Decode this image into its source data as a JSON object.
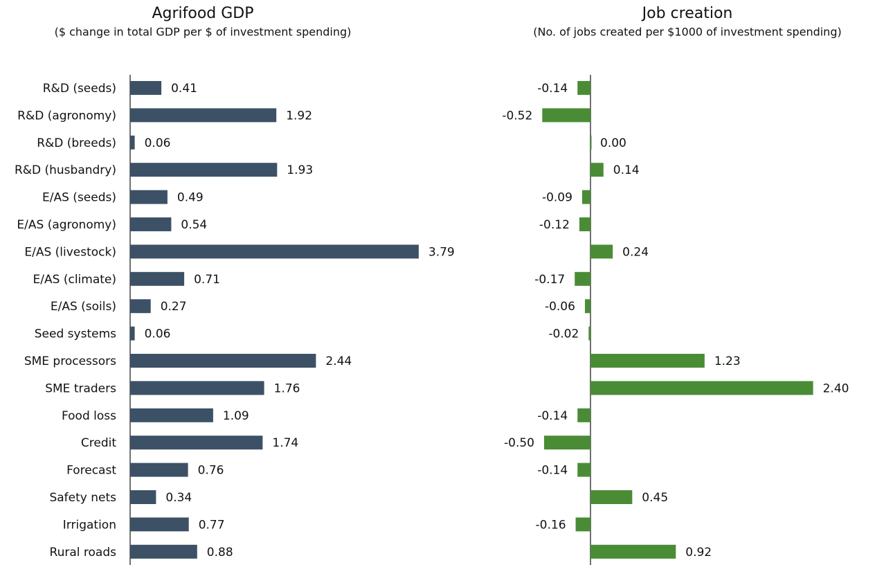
{
  "chart_data": [
    {
      "type": "bar",
      "orientation": "horizontal",
      "title": "Agrifood GDP",
      "subtitle": "($ change in total GDP per $ of investment spending)",
      "categories": [
        "R&D (seeds)",
        "R&D (agronomy)",
        "R&D (breeds)",
        "R&D (husbandry)",
        "E/AS (seeds)",
        "E/AS (agronomy)",
        "E/AS (livestock)",
        "E/AS (climate)",
        "E/AS (soils)",
        "Seed systems",
        "SME processors",
        "SME traders",
        "Food loss",
        "Credit",
        "Forecast",
        "Safety nets",
        "Irrigation",
        "Rural roads"
      ],
      "values": [
        0.41,
        1.92,
        0.06,
        1.93,
        0.49,
        0.54,
        3.79,
        0.71,
        0.27,
        0.06,
        2.44,
        1.76,
        1.09,
        1.74,
        0.76,
        0.34,
        0.77,
        0.88
      ],
      "value_labels": [
        "0.41",
        "1.92",
        "0.06",
        "1.93",
        "0.49",
        "0.54",
        "3.79",
        "0.71",
        "0.27",
        "0.06",
        "2.44",
        "1.76",
        "1.09",
        "1.74",
        "0.76",
        "0.34",
        "0.77",
        "0.88"
      ],
      "color": "#3d5166"
    },
    {
      "type": "bar",
      "orientation": "horizontal",
      "title": "Job creation",
      "subtitle": "(No. of jobs created per $1000 of investment spending)",
      "values": [
        -0.14,
        -0.52,
        0,
        0.14,
        -0.09,
        -0.12,
        0.24,
        -0.17,
        -0.06,
        -0.02,
        1.23,
        2.4,
        -0.14,
        -0.5,
        -0.14,
        0.45,
        -0.16,
        0.92
      ],
      "value_labels": [
        "-0.14",
        "-0.52",
        "0.00",
        "0.14",
        "-0.09",
        "-0.12",
        "0.24",
        "-0.17",
        "-0.06",
        "-0.02",
        "1.23",
        "2.40",
        "-0.14",
        "-0.50",
        "-0.14",
        "0.45",
        "-0.16",
        "0.92"
      ],
      "color": "#4a8c35"
    }
  ]
}
